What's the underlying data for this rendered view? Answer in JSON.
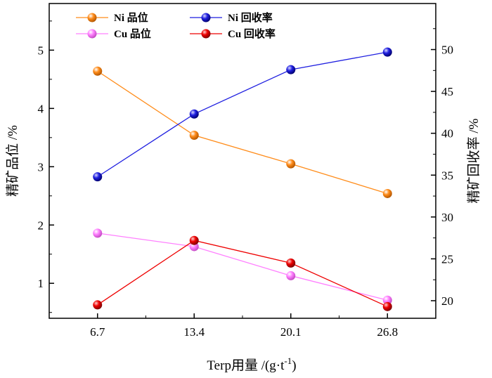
{
  "chart_data": {
    "type": "line",
    "x": [
      6.7,
      13.4,
      20.1,
      26.8
    ],
    "x_tick_labels": [
      "6.7",
      "13.4",
      "20.1",
      "26.8"
    ],
    "xlabel": "Terp用量 /(g·t",
    "xlabel_sup": "-1",
    "xlabel_close": ")",
    "xlim": [
      3.35,
      30.15
    ],
    "ylabel_left": "精矿品位 /%",
    "ylim_left": [
      0.4,
      5.8
    ],
    "yticks_left": [
      1,
      2,
      3,
      4,
      5
    ],
    "ylabel_right": "精矿回收率 /%",
    "ylim_right": [
      17.9,
      55.5
    ],
    "yticks_right": [
      20,
      25,
      30,
      35,
      40,
      45,
      50
    ],
    "legend_position": "top",
    "series": [
      {
        "name": "Ni 品位",
        "axis": "left",
        "color": "#ff8c1a",
        "values": [
          4.64,
          3.54,
          3.05,
          2.54
        ]
      },
      {
        "name": "Cu 品位",
        "axis": "left",
        "color": "#ff80ff",
        "values": [
          1.86,
          1.63,
          1.13,
          0.71
        ]
      },
      {
        "name": "Ni 回收率",
        "axis": "right",
        "color": "#1f1fe0",
        "values": [
          34.8,
          42.3,
          47.6,
          49.7
        ]
      },
      {
        "name": "Cu 回收率",
        "axis": "right",
        "color": "#ee0000",
        "values": [
          19.5,
          27.2,
          24.5,
          19.3
        ]
      }
    ]
  }
}
